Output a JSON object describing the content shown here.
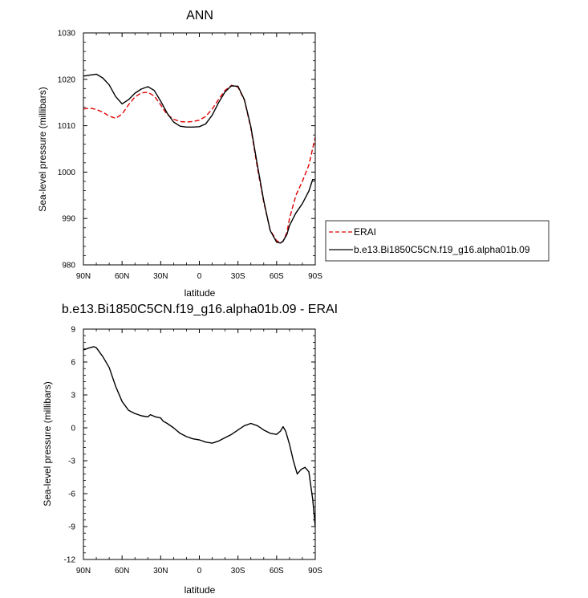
{
  "chart_data": [
    {
      "type": "line",
      "title": "ANN",
      "xlabel": "latitude",
      "ylabel": "Sea-level pressure (millibars)",
      "xlim": [
        90,
        -90
      ],
      "ylim": [
        980,
        1030
      ],
      "x_ticks": [
        90,
        60,
        30,
        0,
        -30,
        -60,
        -90
      ],
      "x_tick_labels": [
        "90N",
        "60N",
        "30N",
        "0",
        "30S",
        "60S",
        "90S"
      ],
      "y_ticks": [
        980,
        990,
        1000,
        1010,
        1020,
        1030
      ],
      "y_tick_labels": [
        "980",
        "990",
        "1000",
        "1010",
        "1020",
        "1030"
      ],
      "grid": false,
      "legend_position": "right",
      "series": [
        {
          "name": "ERAI",
          "color": "#e00000",
          "dash": "dashed",
          "x": [
            90,
            85,
            80,
            75,
            70,
            65,
            60,
            55,
            50,
            45,
            40,
            35,
            30,
            25,
            20,
            15,
            10,
            5,
            0,
            -5,
            -10,
            -15,
            -20,
            -25,
            -30,
            -35,
            -40,
            -45,
            -50,
            -55,
            -60,
            -63,
            -65,
            -68,
            -70,
            -75,
            -80,
            -85,
            -90
          ],
          "y": [
            1013.6,
            1013.8,
            1013.5,
            1012.9,
            1012.1,
            1011.6,
            1012.5,
            1014.5,
            1016.2,
            1017.1,
            1017.2,
            1016.4,
            1014.5,
            1012.4,
            1011.4,
            1010.9,
            1010.8,
            1010.9,
            1011.2,
            1012.0,
            1013.6,
            1015.7,
            1017.6,
            1018.7,
            1018.3,
            1015.5,
            1009.5,
            1001.0,
            993.5,
            987.5,
            985.2,
            984.8,
            985.1,
            987.0,
            990.0,
            995.0,
            998.0,
            1001.5,
            1007.5
          ]
        },
        {
          "name": "b.e13.Bi1850C5CN.f19_g16.alpha01b.09",
          "color": "#000000",
          "dash": "solid",
          "x": [
            90,
            85,
            80,
            75,
            70,
            65,
            60,
            55,
            50,
            45,
            40,
            35,
            30,
            25,
            20,
            15,
            10,
            5,
            0,
            -5,
            -10,
            -15,
            -20,
            -25,
            -30,
            -35,
            -40,
            -45,
            -50,
            -55,
            -60,
            -63,
            -65,
            -68,
            -70,
            -75,
            -80,
            -85,
            -88,
            -90
          ],
          "y": [
            1020.7,
            1020.9,
            1021.1,
            1020.3,
            1018.8,
            1016.3,
            1014.7,
            1015.6,
            1017.0,
            1017.9,
            1018.4,
            1017.6,
            1015.3,
            1012.7,
            1010.8,
            1009.9,
            1009.7,
            1009.7,
            1009.8,
            1010.4,
            1012.3,
            1015.0,
            1017.3,
            1018.6,
            1018.5,
            1015.6,
            1009.8,
            1001.6,
            993.8,
            987.4,
            984.9,
            984.7,
            985.1,
            986.6,
            988.5,
            991.2,
            993.2,
            995.9,
            998.4,
            998.3
          ]
        }
      ]
    },
    {
      "type": "line",
      "title": "b.e13.Bi1850C5CN.f19_g16.alpha01b.09 - ERAI",
      "xlabel": "latitude",
      "ylabel": "Sea-level pressure (millibars)",
      "xlim": [
        90,
        -90
      ],
      "ylim": [
        -12,
        9
      ],
      "x_ticks": [
        90,
        60,
        30,
        0,
        -30,
        -60,
        -90
      ],
      "x_tick_labels": [
        "90N",
        "60N",
        "30N",
        "0",
        "30S",
        "60S",
        "90S"
      ],
      "y_ticks": [
        -12,
        -9,
        -6,
        -3,
        0,
        3,
        6,
        9
      ],
      "y_tick_labels": [
        "-12",
        "-9",
        "-6",
        "-3",
        "0",
        "3",
        "6",
        "9"
      ],
      "grid": false,
      "series": [
        {
          "color": "#000000",
          "dash": "solid",
          "x": [
            90,
            85,
            82,
            80,
            75,
            70,
            65,
            60,
            55,
            50,
            45,
            40,
            38,
            36,
            34,
            30,
            28,
            25,
            20,
            15,
            10,
            5,
            0,
            -5,
            -10,
            -15,
            -20,
            -25,
            -30,
            -35,
            -40,
            -45,
            -50,
            -55,
            -60,
            -63,
            -65,
            -67,
            -70,
            -73,
            -76,
            -79,
            -82,
            -85,
            -88,
            -90
          ],
          "y": [
            7.1,
            7.3,
            7.4,
            7.3,
            6.5,
            5.5,
            3.8,
            2.4,
            1.6,
            1.3,
            1.1,
            1.0,
            1.2,
            1.1,
            1.0,
            0.9,
            0.6,
            0.4,
            0.0,
            -0.5,
            -0.8,
            -1.0,
            -1.1,
            -1.3,
            -1.4,
            -1.2,
            -0.9,
            -0.6,
            -0.2,
            0.2,
            0.4,
            0.2,
            -0.2,
            -0.5,
            -0.6,
            -0.3,
            0.1,
            -0.3,
            -1.5,
            -3.0,
            -4.2,
            -3.8,
            -3.6,
            -4.0,
            -6.5,
            -9.0
          ]
        }
      ]
    }
  ]
}
